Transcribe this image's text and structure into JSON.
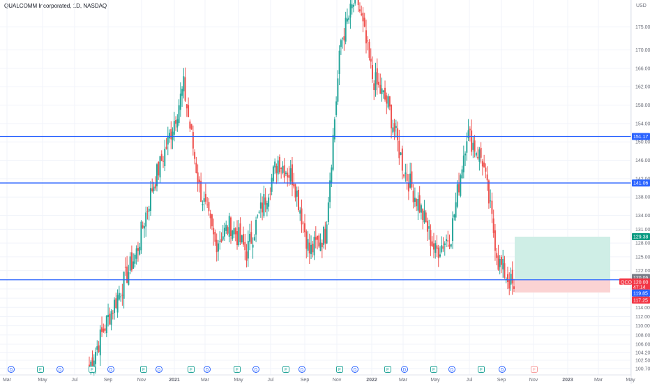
{
  "header": {
    "title": "QUALCOMM Incorporated, 1D, NASDAQ"
  },
  "price_axis": {
    "currency": "USD",
    "ticks": [
      "100.70",
      "102.50",
      "104.20",
      "106.00",
      "108.00",
      "110.00",
      "112.00",
      "114.00",
      "116.00",
      "118.00",
      "120.00",
      "122.00",
      "125.00",
      "128.00",
      "131.00",
      "134.00",
      "138.00",
      "142.00",
      "146.00",
      "150.00",
      "154.00",
      "158.00",
      "162.00",
      "166.00",
      "170.00",
      "175.00"
    ]
  },
  "time_axis": {
    "labels": [
      "Mar",
      "May",
      "Jul",
      "Sep",
      "Nov",
      "2021",
      "Mar",
      "May",
      "Jul",
      "Sep",
      "Nov",
      "2022",
      "Mar",
      "May",
      "Jul",
      "Sep",
      "Nov",
      "2023",
      "Mar",
      "May"
    ]
  },
  "colors": {
    "up": "#26a69a",
    "down": "#ef5350",
    "hline": "#2962ff",
    "target_zone": "#cfeee6",
    "stop_zone": "#fbd3d3",
    "symbol_tag": "#f23645",
    "target_tag": "#089981",
    "stop_tag": "#f23645",
    "entry_tag": "#787b86",
    "level_tag": "#2962ff"
  },
  "levels": [
    {
      "price": 151.17,
      "label": "151.17"
    },
    {
      "price": 141.06,
      "label": "141.06"
    },
    {
      "price": 120.0,
      "label": "120.00"
    }
  ],
  "position": {
    "target": "129.38",
    "entry": "120.06",
    "symbol": "QCOM",
    "last": "120.00",
    "countdown": "47:14",
    "current": "119.85",
    "stop": "117.25"
  },
  "events": [
    {
      "type": "D"
    },
    {
      "type": "E"
    },
    {
      "type": "D"
    },
    {
      "type": "E"
    },
    {
      "type": "D"
    },
    {
      "type": "E"
    },
    {
      "type": "D"
    },
    {
      "type": "E"
    },
    {
      "type": "D"
    },
    {
      "type": "E"
    },
    {
      "type": "D"
    },
    {
      "type": "E"
    },
    {
      "type": "D"
    },
    {
      "type": "E"
    },
    {
      "type": "D"
    },
    {
      "type": "E"
    },
    {
      "type": "D"
    },
    {
      "type": "E"
    },
    {
      "type": "D"
    },
    {
      "type": "E"
    },
    {
      "type": "D"
    },
    {
      "type": "E"
    },
    {
      "type": "D"
    },
    {
      "type": "E"
    }
  ],
  "chart_data": {
    "type": "candlestick",
    "title": "QUALCOMM Incorporated, 1D, NASDAQ",
    "ylabel": "USD",
    "ylim": [
      100,
      178
    ],
    "series": [
      {
        "points": [
          {
            "month": "2020-07",
            "close": 101
          },
          {
            "month": "2020-08",
            "close": 110
          },
          {
            "month": "2020-09",
            "close": 118
          },
          {
            "month": "2020-10",
            "close": 126
          },
          {
            "month": "2020-11",
            "close": 140
          },
          {
            "month": "2020-12",
            "close": 150
          },
          {
            "month": "2021-01",
            "close": 162
          },
          {
            "month": "2021-02",
            "close": 140
          },
          {
            "month": "2021-03",
            "close": 128
          },
          {
            "month": "2021-04",
            "close": 132
          },
          {
            "month": "2021-05",
            "close": 126
          },
          {
            "month": "2021-06",
            "close": 136
          },
          {
            "month": "2021-07",
            "close": 146
          },
          {
            "month": "2021-08",
            "close": 142
          },
          {
            "month": "2021-09",
            "close": 126
          },
          {
            "month": "2021-10",
            "close": 130
          },
          {
            "month": "2021-11",
            "close": 172
          },
          {
            "month": "2021-12",
            "close": 182
          },
          {
            "month": "2022-01",
            "close": 164
          },
          {
            "month": "2022-02",
            "close": 158
          },
          {
            "month": "2022-03",
            "close": 144
          },
          {
            "month": "2022-04",
            "close": 136
          },
          {
            "month": "2022-05",
            "close": 126
          },
          {
            "month": "2022-06",
            "close": 130
          },
          {
            "month": "2022-07",
            "close": 152
          },
          {
            "month": "2022-08",
            "close": 146
          },
          {
            "month": "2022-09",
            "close": 124
          },
          {
            "month": "2022-10",
            "close": 118
          }
        ]
      }
    ],
    "hlines": [
      151.17,
      141.06,
      120.0
    ],
    "long_position": {
      "entry": 120.06,
      "target": 129.38,
      "stop": 117.25
    }
  }
}
